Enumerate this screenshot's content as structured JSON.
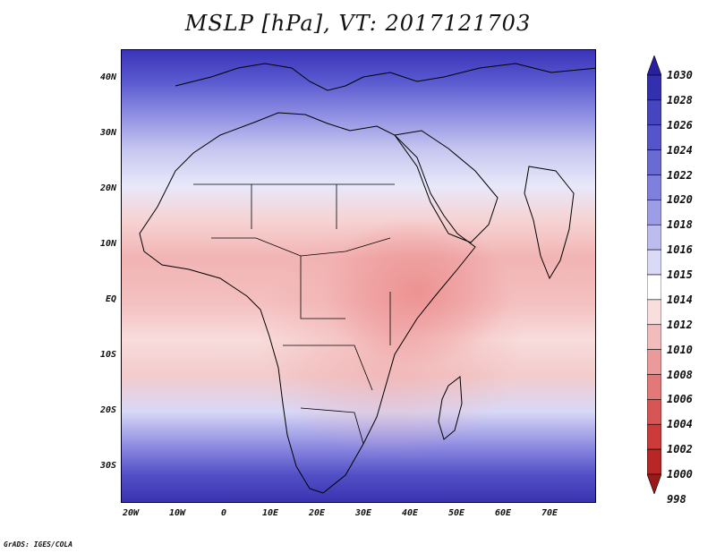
{
  "title": "MSLP [hPa], VT: 2017121703",
  "footer": "GrADS: IGES/COLA",
  "map": {
    "region": "Africa",
    "lat_labels": [
      "40N",
      "30N",
      "20N",
      "10N",
      "EQ",
      "10S",
      "20S",
      "30S"
    ],
    "lon_labels": [
      "20W",
      "10W",
      "0",
      "10E",
      "20E",
      "30E",
      "40E",
      "50E",
      "60E",
      "70E"
    ]
  },
  "colorbar": {
    "levels": [
      "1030",
      "1028",
      "1026",
      "1024",
      "1022",
      "1020",
      "1018",
      "1016",
      "1015",
      "1014",
      "1012",
      "1010",
      "1008",
      "1006",
      "1004",
      "1002",
      "1000",
      "998"
    ],
    "colors": [
      "#2a1f9e",
      "#3330b0",
      "#4545bf",
      "#5654c9",
      "#6a6ad3",
      "#7f7fdc",
      "#9d9de6",
      "#bcbcef",
      "#dadaf7",
      "#ffffff",
      "#f9dede",
      "#f2bcbc",
      "#ea9a9a",
      "#e27878",
      "#d85555",
      "#cc3a3a",
      "#b82626",
      "#9a1a1a"
    ]
  }
}
